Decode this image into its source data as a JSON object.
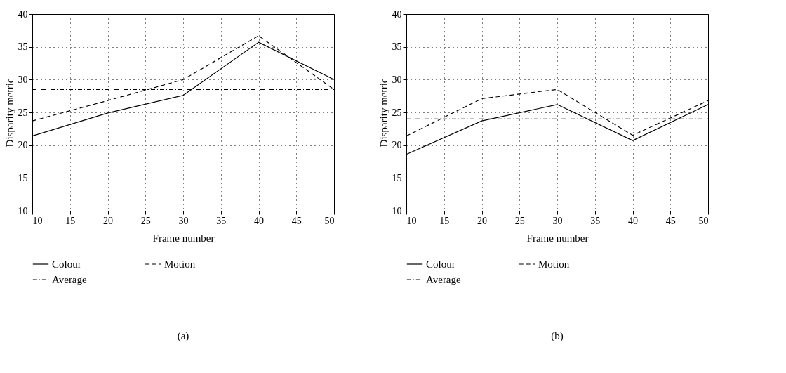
{
  "chart_data": [
    {
      "type": "line",
      "title": "(a)",
      "xlabel": "Frame number",
      "ylabel": "Disparity metric",
      "x": [
        10,
        20,
        30,
        40,
        50
      ],
      "xlim": [
        10,
        50
      ],
      "ylim": [
        10,
        40
      ],
      "xticks": [
        10,
        15,
        20,
        25,
        30,
        35,
        40,
        45,
        50
      ],
      "yticks": [
        10,
        15,
        20,
        25,
        30,
        35,
        40
      ],
      "grid": true,
      "legend": "bottom",
      "series": [
        {
          "name": "Colour",
          "color": "#000000",
          "line_style": "solid",
          "values": [
            21.4,
            24.9,
            27.6,
            35.7,
            30.0
          ]
        },
        {
          "name": "Motion",
          "color": "#000000",
          "line_style": "dashed",
          "values": [
            23.7,
            26.8,
            30.0,
            36.7,
            28.5
          ]
        },
        {
          "name": "Average",
          "color": "#000000",
          "line_style": "dashdot",
          "values": [
            28.5,
            28.5,
            28.5,
            28.5,
            28.5
          ]
        }
      ]
    },
    {
      "type": "line",
      "title": "(b)",
      "xlabel": "Frame number",
      "ylabel": "Disparity metric",
      "x": [
        10,
        20,
        30,
        40,
        50
      ],
      "xlim": [
        10,
        50
      ],
      "ylim": [
        10,
        40
      ],
      "xticks": [
        10,
        15,
        20,
        25,
        30,
        35,
        40,
        45,
        50
      ],
      "yticks": [
        10,
        15,
        20,
        25,
        30,
        35,
        40
      ],
      "grid": true,
      "legend": "bottom",
      "series": [
        {
          "name": "Colour",
          "color": "#000000",
          "line_style": "solid",
          "values": [
            18.6,
            23.7,
            26.2,
            20.7,
            26.2
          ]
        },
        {
          "name": "Motion",
          "color": "#000000",
          "line_style": "dashed",
          "values": [
            21.4,
            27.1,
            28.5,
            21.5,
            26.8
          ]
        },
        {
          "name": "Average",
          "color": "#000000",
          "line_style": "dashdot",
          "values": [
            24.0,
            24.0,
            24.0,
            24.0,
            24.0
          ]
        }
      ]
    }
  ]
}
